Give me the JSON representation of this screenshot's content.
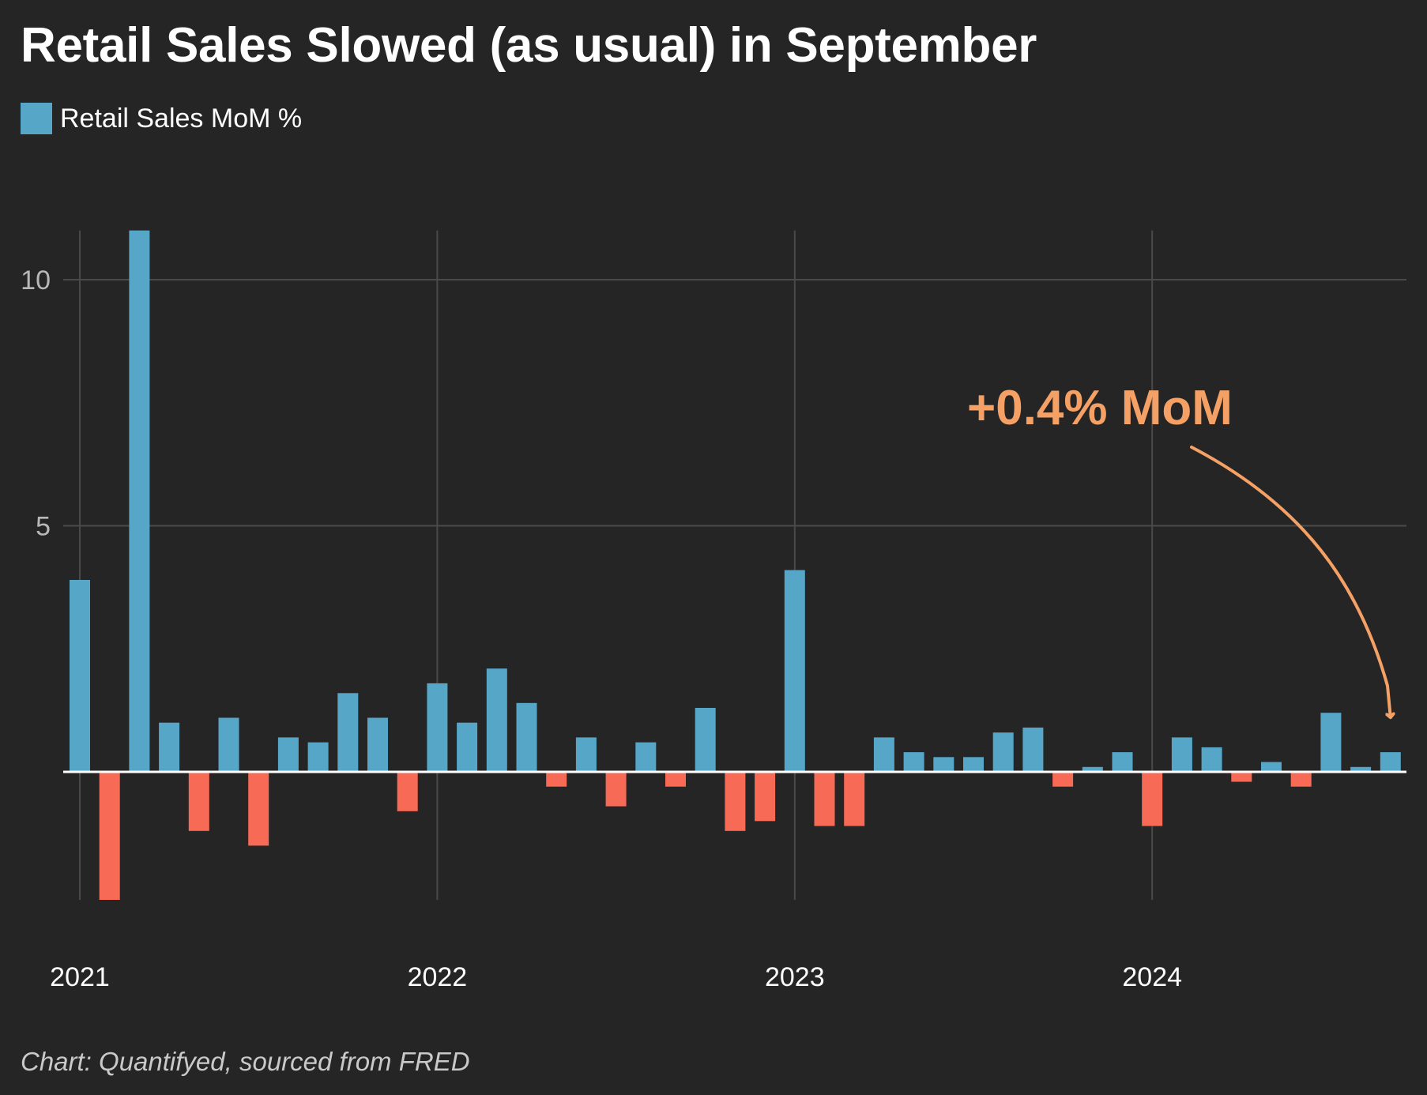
{
  "title": "Retail Sales Slowed (as usual) in September",
  "source": "Chart: Quantifyed, sourced from FRED",
  "chart_data": {
    "type": "bar",
    "title": "Retail Sales Slowed (as usual) in September",
    "legend": {
      "label": "Retail Sales MoM %",
      "position": "top-left"
    },
    "annotation": {
      "text": "+0.4% MoM",
      "points_to": "2024-09"
    },
    "y_ticks": [
      5,
      10
    ],
    "x_ticks": [
      "2021",
      "2022",
      "2023",
      "2024"
    ],
    "ylim": [
      -2.6,
      11
    ],
    "grid": true,
    "colors": {
      "positive": "#56a6c8",
      "negative": "#f76a55",
      "annotation": "#f5a065",
      "background": "#252525",
      "grid": "#4a4a4a",
      "axis_text": "#b8b8b8"
    },
    "series": [
      {
        "name": "Retail Sales MoM %",
        "x": [
          "2021-01",
          "2021-02",
          "2021-03",
          "2021-04",
          "2021-05",
          "2021-06",
          "2021-07",
          "2021-08",
          "2021-09",
          "2021-10",
          "2021-11",
          "2021-12",
          "2022-01",
          "2022-02",
          "2022-03",
          "2022-04",
          "2022-05",
          "2022-06",
          "2022-07",
          "2022-08",
          "2022-09",
          "2022-10",
          "2022-11",
          "2022-12",
          "2023-01",
          "2023-02",
          "2023-03",
          "2023-04",
          "2023-05",
          "2023-06",
          "2023-07",
          "2023-08",
          "2023-09",
          "2023-10",
          "2023-11",
          "2023-12",
          "2024-01",
          "2024-02",
          "2024-03",
          "2024-04",
          "2024-05",
          "2024-06",
          "2024-07",
          "2024-08",
          "2024-09"
        ],
        "values": [
          3.9,
          -2.6,
          11.0,
          1.0,
          -1.2,
          1.1,
          -1.5,
          0.7,
          0.6,
          1.6,
          1.1,
          -0.8,
          1.8,
          1.0,
          2.1,
          1.4,
          -0.3,
          0.7,
          -0.7,
          0.6,
          -0.3,
          1.3,
          -1.2,
          -1.0,
          4.1,
          -1.1,
          -1.1,
          0.7,
          0.4,
          0.3,
          0.3,
          0.8,
          0.9,
          -0.3,
          0.1,
          0.4,
          -1.1,
          0.7,
          0.5,
          -0.2,
          0.2,
          -0.3,
          1.2,
          0.1,
          0.4
        ]
      }
    ]
  }
}
